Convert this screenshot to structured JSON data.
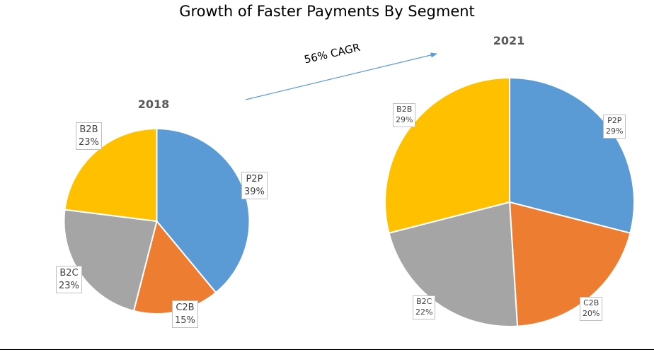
{
  "chart_data": {
    "type": "pie",
    "title": "Growth of Faster Payments By Segment",
    "annotation": "56% CAGR",
    "colors": {
      "P2P": "#5b9bd5",
      "C2B": "#ed7d31",
      "B2C": "#a5a5a5",
      "B2B": "#ffc000"
    },
    "charts": [
      {
        "title": "2018",
        "slices": [
          {
            "label": "P2P",
            "value": 39,
            "text": "39%"
          },
          {
            "label": "C2B",
            "value": 15,
            "text": "15%"
          },
          {
            "label": "B2C",
            "value": 23,
            "text": "23%"
          },
          {
            "label": "B2B",
            "value": 23,
            "text": "23%"
          }
        ]
      },
      {
        "title": "2021",
        "slices": [
          {
            "label": "P2P",
            "value": 29,
            "text": "29%"
          },
          {
            "label": "C2B",
            "value": 20,
            "text": "20%"
          },
          {
            "label": "B2C",
            "value": 22,
            "text": "22%"
          },
          {
            "label": "B2B",
            "value": 29,
            "text": "29%"
          }
        ]
      }
    ]
  }
}
